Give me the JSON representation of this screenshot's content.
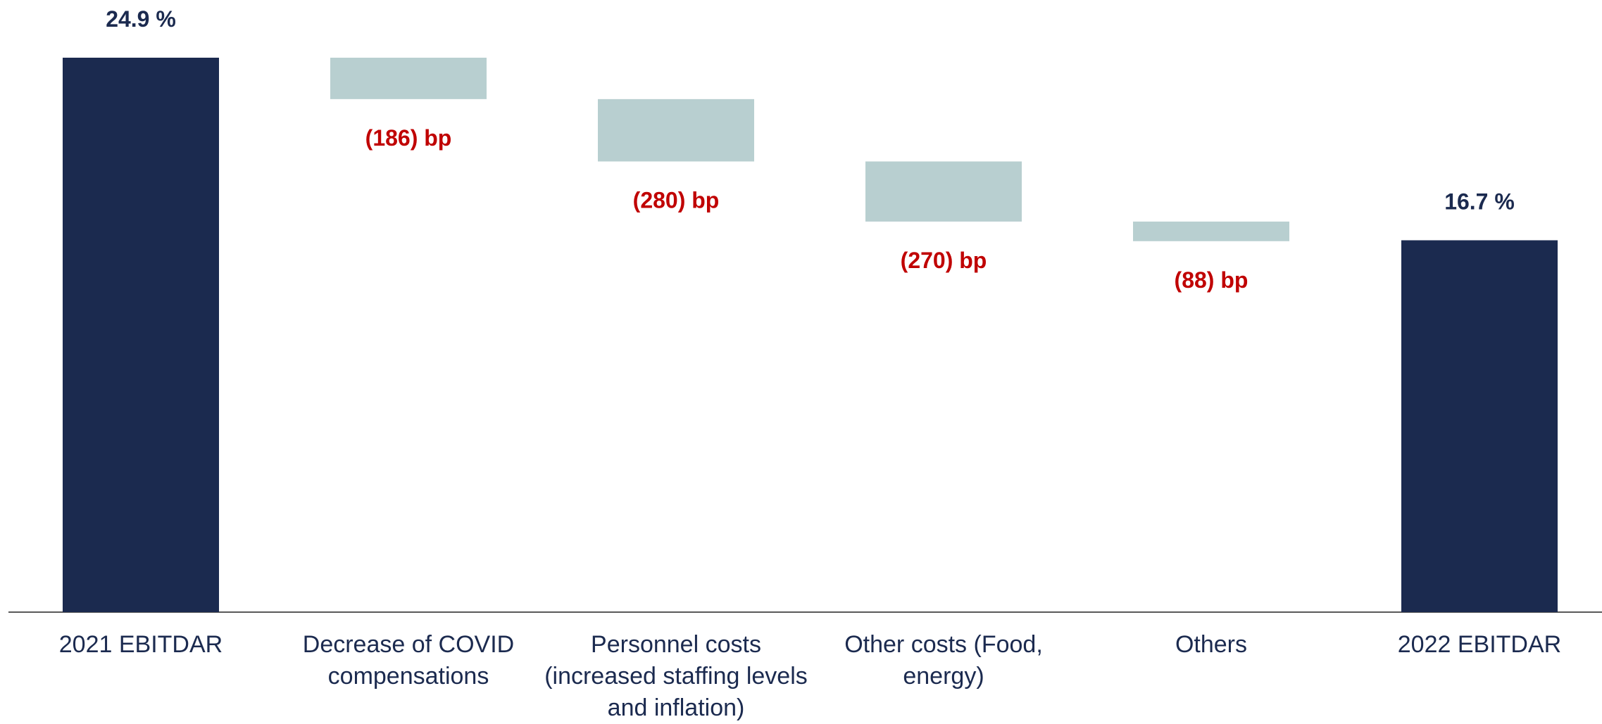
{
  "chart_data": {
    "type": "waterfall",
    "unit": "%",
    "ylim": [
      0,
      24.9
    ],
    "categories": [
      "2021 EBITDAR",
      "Decrease of COVID\ncompensations",
      "Personnel costs\n(increased staffing levels\nand inflation)",
      "Other costs (Food,\nenergy)",
      "Others",
      "2022 EBITDAR"
    ],
    "bars": [
      {
        "kind": "total",
        "value": 24.9,
        "label": "24.9 %"
      },
      {
        "kind": "delta",
        "value": -1.86,
        "label": "(186) bp"
      },
      {
        "kind": "delta",
        "value": -2.8,
        "label": "(280) bp"
      },
      {
        "kind": "delta",
        "value": -2.7,
        "label": "(270) bp"
      },
      {
        "kind": "delta",
        "value": -0.88,
        "label": "(88) bp"
      },
      {
        "kind": "total",
        "value": 16.7,
        "label": "16.7 %"
      }
    ],
    "grid": false,
    "legend": "none"
  },
  "colors": {
    "total_bar": "#1b2a4f",
    "delta_bar": "#b8cfd0",
    "total_label": "#1b2a4f",
    "delta_label": "#c00000",
    "axis": "#595959",
    "category_text": "#1b2a4f"
  }
}
